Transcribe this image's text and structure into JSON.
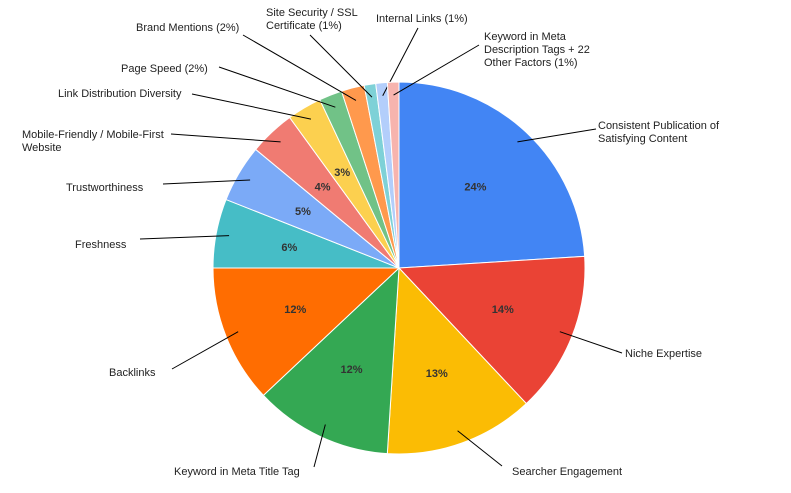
{
  "chart_data": {
    "type": "pie",
    "title": "",
    "slices": [
      {
        "label": "Consistent Publication of Satisfying Content",
        "value": 24,
        "pct_text": "24%",
        "color": "#4285f4"
      },
      {
        "label": "Niche Expertise",
        "value": 14,
        "pct_text": "14%",
        "color": "#ea4335"
      },
      {
        "label": "Searcher Engagement",
        "value": 13,
        "pct_text": "13%",
        "color": "#fbbc04"
      },
      {
        "label": "Keyword in Meta Title Tag",
        "value": 12,
        "pct_text": "12%",
        "color": "#34a853"
      },
      {
        "label": "Backlinks",
        "value": 12,
        "pct_text": "12%",
        "color": "#ff6d01"
      },
      {
        "label": "Freshness",
        "value": 6,
        "pct_text": "6%",
        "color": "#46bdc6"
      },
      {
        "label": "Trustworthiness",
        "value": 5,
        "pct_text": "5%",
        "color": "#7baaf7"
      },
      {
        "label": "Mobile-Friendly / Mobile-First Website",
        "value": 4,
        "pct_text": "4%",
        "color": "#f07b72"
      },
      {
        "label": "Link Distribution Diversity",
        "value": 3,
        "pct_text": "3%",
        "color": "#fcd04f"
      },
      {
        "label": "Page Speed (2%)",
        "value": 2,
        "pct_text": "",
        "color": "#71c287"
      },
      {
        "label": "Brand Mentions (2%)",
        "value": 2,
        "pct_text": "",
        "color": "#ff994d"
      },
      {
        "label": "Site Security / SSL Certificate (1%)",
        "value": 1,
        "pct_text": "",
        "color": "#7ed1d7"
      },
      {
        "label": "Internal Links (1%)",
        "value": 1,
        "pct_text": "",
        "color": "#b3cefb"
      },
      {
        "label": "Keyword in Meta Description Tags + 22 Other Factors (1%)",
        "value": 1,
        "pct_text": "",
        "color": "#f7b4ae"
      }
    ]
  }
}
